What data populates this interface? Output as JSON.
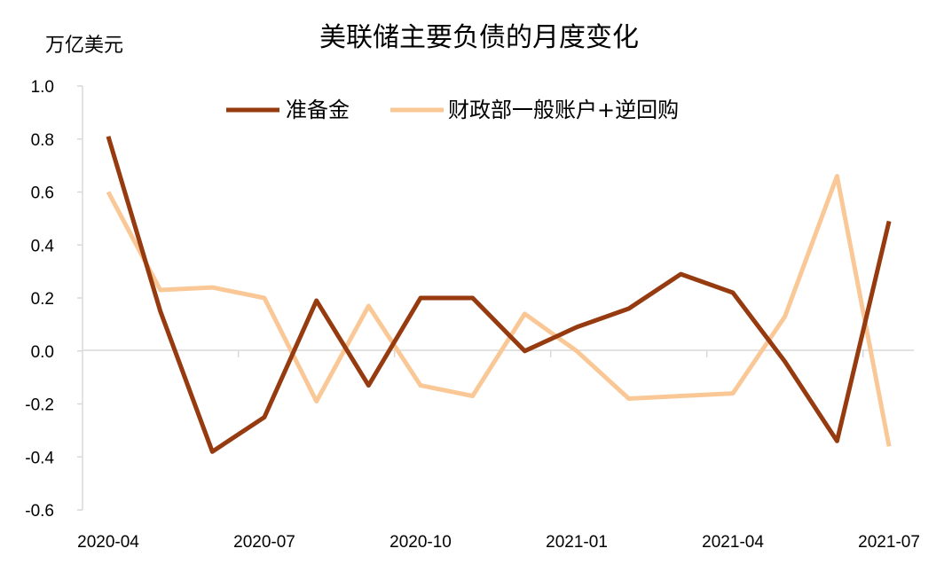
{
  "chart_data": {
    "type": "line",
    "title": "美联储主要负债的月度变化",
    "ylabel": "万亿美元",
    "xlabel": "",
    "ylim": [
      -0.6,
      1.0
    ],
    "yticks": [
      "1.0",
      "0.8",
      "0.6",
      "0.4",
      "0.2",
      "0.0",
      "-0.2",
      "-0.4",
      "-0.6"
    ],
    "ytick_values": [
      1.0,
      0.8,
      0.6,
      0.4,
      0.2,
      0.0,
      -0.2,
      -0.4,
      -0.6
    ],
    "x": [
      "2020-04",
      "2020-05",
      "2020-06",
      "2020-07",
      "2020-08",
      "2020-09",
      "2020-10",
      "2020-11",
      "2020-12",
      "2021-01",
      "2021-02",
      "2021-03",
      "2021-04",
      "2021-05",
      "2021-06",
      "2021-07"
    ],
    "xtick_labels": [
      "2020-04",
      "2020-07",
      "2020-10",
      "2021-01",
      "2021-04",
      "2021-07"
    ],
    "xtick_index": [
      0,
      3,
      6,
      9,
      12,
      15
    ],
    "grid": false,
    "legend_position": "top-center",
    "series": [
      {
        "name": "准备金",
        "color": "#963a0f",
        "values": [
          0.81,
          0.15,
          -0.38,
          -0.25,
          0.19,
          -0.13,
          0.2,
          0.2,
          0.0,
          0.09,
          0.16,
          0.29,
          0.22,
          -0.04,
          -0.34,
          0.49
        ]
      },
      {
        "name": "财政部一般账户+逆回购",
        "color": "#fac896",
        "values": [
          0.6,
          0.23,
          0.24,
          0.2,
          -0.19,
          0.17,
          -0.13,
          -0.17,
          0.14,
          0.0,
          -0.18,
          -0.17,
          -0.16,
          0.13,
          0.66,
          -0.36
        ]
      }
    ]
  }
}
